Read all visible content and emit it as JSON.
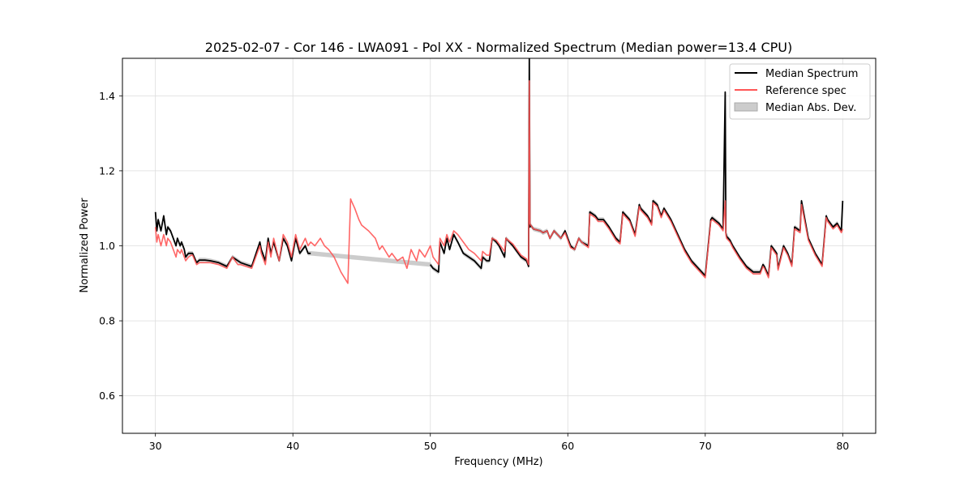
{
  "chart_data": {
    "type": "line",
    "title": "2025-02-07 - Cor 146 - LWA091 - Pol XX - Normalized Spectrum (Median power=13.4 CPU)",
    "xlabel": "Frequency (MHz)",
    "ylabel": "Normalized Power",
    "xlim": [
      27.6,
      82.4
    ],
    "ylim": [
      0.5,
      1.5
    ],
    "xticks": [
      30,
      40,
      50,
      60,
      70,
      80
    ],
    "yticks": [
      0.6,
      0.8,
      1.0,
      1.2,
      1.4
    ],
    "grid": true,
    "legend_position": "top-right",
    "legend": [
      {
        "label": "Median Spectrum",
        "kind": "line"
      },
      {
        "label": "Reference spec",
        "kind": "line"
      },
      {
        "label": "Median Abs. Dev.",
        "kind": "patch"
      }
    ],
    "colors": {
      "median": "#000000",
      "reference": "#ff5555",
      "mad": "#aaaaaa",
      "grid": "#dddddd"
    },
    "series": [
      {
        "name": "Median Spectrum",
        "x": [
          30.0,
          30.1,
          30.2,
          30.4,
          30.6,
          30.8,
          30.9,
          31.1,
          31.3,
          31.5,
          31.6,
          31.8,
          31.9,
          32.1,
          32.2,
          32.4,
          32.6,
          32.7,
          33.0,
          33.2,
          33.6,
          34.0,
          34.6,
          35.2,
          35.6,
          36.0,
          36.2,
          36.6,
          37.0,
          37.6,
          37.7,
          38.0,
          38.2,
          38.4,
          38.6,
          39.0,
          39.3,
          39.6,
          39.9,
          40.2,
          40.5,
          40.9,
          41.1,
          41.3,
          50.0,
          50.2,
          50.6,
          50.7,
          51.0,
          51.2,
          51.4,
          51.7,
          52.0,
          52.4,
          52.8,
          53.2,
          53.7,
          53.8,
          54.1,
          54.3,
          54.5,
          54.8,
          55.0,
          55.4,
          55.5,
          56.0,
          56.6,
          57.0,
          57.15,
          57.2,
          57.25,
          57.3,
          57.5,
          58.0,
          58.2,
          58.5,
          58.7,
          59.0,
          59.5,
          59.8,
          60.2,
          60.5,
          60.8,
          61.0,
          61.5,
          61.6,
          62.0,
          62.2,
          62.6,
          63.0,
          63.5,
          63.8,
          64.0,
          64.5,
          64.9,
          65.2,
          65.3,
          65.8,
          66.1,
          66.2,
          66.5,
          66.8,
          67.0,
          67.5,
          68.0,
          68.5,
          69.0,
          69.5,
          70.0,
          70.4,
          70.5,
          71.0,
          71.3,
          71.45,
          71.5,
          71.55,
          71.8,
          72.0,
          72.5,
          73.0,
          73.5,
          74.0,
          74.2,
          74.3,
          74.6,
          74.8,
          75.2,
          75.3,
          75.7,
          76.0,
          76.3,
          76.5,
          76.9,
          77.0,
          77.5,
          78.0,
          78.5,
          78.8,
          78.9,
          79.3,
          79.6,
          79.9,
          80.0
        ],
        "y": [
          1.09,
          1.04,
          1.07,
          1.04,
          1.08,
          1.03,
          1.05,
          1.04,
          1.02,
          1.0,
          1.02,
          1.0,
          1.01,
          0.99,
          0.97,
          0.98,
          0.98,
          0.98,
          0.955,
          0.962,
          0.962,
          0.96,
          0.955,
          0.945,
          0.97,
          0.96,
          0.955,
          0.95,
          0.945,
          1.01,
          0.99,
          0.96,
          1.02,
          0.98,
          1.01,
          0.96,
          1.02,
          1.0,
          0.96,
          1.02,
          0.98,
          1.0,
          0.98,
          0.98,
          0.95,
          0.94,
          0.93,
          1.01,
          0.98,
          1.02,
          0.99,
          1.03,
          1.01,
          0.98,
          0.97,
          0.96,
          0.94,
          0.97,
          0.96,
          0.96,
          1.02,
          1.01,
          1.0,
          0.97,
          1.02,
          1.0,
          0.97,
          0.96,
          0.945,
          1.5,
          1.05,
          1.055,
          1.045,
          1.04,
          1.035,
          1.04,
          1.02,
          1.04,
          1.02,
          1.04,
          1.0,
          0.99,
          1.02,
          1.01,
          1.0,
          1.09,
          1.08,
          1.07,
          1.07,
          1.05,
          1.02,
          1.01,
          1.09,
          1.07,
          1.03,
          1.11,
          1.1,
          1.08,
          1.06,
          1.12,
          1.11,
          1.08,
          1.1,
          1.07,
          1.03,
          0.99,
          0.96,
          0.94,
          0.92,
          1.07,
          1.075,
          1.06,
          1.045,
          1.41,
          1.035,
          1.025,
          1.015,
          1.0,
          0.97,
          0.945,
          0.93,
          0.93,
          0.95,
          0.945,
          0.92,
          1.0,
          0.98,
          0.94,
          1.0,
          0.98,
          0.95,
          1.05,
          1.04,
          1.12,
          1.02,
          0.98,
          0.95,
          1.08,
          1.07,
          1.05,
          1.06,
          1.04,
          1.12
        ]
      },
      {
        "name": "Reference spec",
        "x": [
          30.0,
          30.1,
          30.2,
          30.4,
          30.6,
          30.8,
          30.9,
          31.1,
          31.3,
          31.5,
          31.6,
          31.8,
          31.9,
          32.1,
          32.2,
          32.4,
          32.6,
          32.7,
          33.0,
          33.2,
          33.6,
          34.0,
          34.6,
          35.2,
          35.6,
          36.0,
          36.2,
          36.6,
          37.0,
          37.6,
          37.7,
          38.0,
          38.2,
          38.4,
          38.6,
          39.0,
          39.3,
          39.6,
          39.9,
          40.2,
          40.5,
          40.9,
          41.1,
          41.3,
          41.6,
          42.0,
          42.3,
          42.6,
          43.0,
          43.5,
          44.0,
          44.2,
          44.25,
          44.5,
          44.8,
          45.0,
          45.5,
          46.0,
          46.3,
          46.5,
          47.0,
          47.2,
          47.6,
          48.0,
          48.3,
          48.6,
          49.0,
          49.2,
          49.6,
          50.0,
          50.2,
          50.6,
          50.7,
          51.0,
          51.2,
          51.4,
          51.7,
          52.0,
          52.4,
          52.8,
          53.2,
          53.7,
          53.8,
          54.1,
          54.3,
          54.5,
          54.8,
          55.0,
          55.4,
          55.5,
          56.0,
          56.6,
          57.0,
          57.15,
          57.2,
          57.25,
          57.3,
          57.5,
          58.0,
          58.2,
          58.5,
          58.7,
          59.0,
          59.5,
          59.8,
          60.2,
          60.5,
          60.8,
          61.0,
          61.5,
          61.6,
          62.0,
          62.2,
          62.6,
          63.0,
          63.5,
          63.8,
          64.0,
          64.5,
          64.9,
          65.2,
          65.3,
          65.8,
          66.1,
          66.2,
          66.5,
          66.8,
          67.0,
          67.5,
          68.0,
          68.5,
          69.0,
          69.5,
          70.0,
          70.4,
          70.5,
          71.0,
          71.3,
          71.45,
          71.5,
          71.55,
          71.8,
          72.0,
          72.5,
          73.0,
          73.5,
          74.0,
          74.2,
          74.3,
          74.6,
          74.8,
          75.2,
          75.3,
          75.7,
          76.0,
          76.3,
          76.5,
          76.9,
          77.0,
          77.5,
          78.0,
          78.5,
          78.8,
          78.9,
          79.3,
          79.6,
          79.9,
          80.0
        ],
        "y": [
          1.05,
          1.01,
          1.03,
          1.0,
          1.03,
          1.0,
          1.02,
          1.01,
          0.99,
          0.97,
          0.99,
          0.98,
          0.99,
          0.97,
          0.96,
          0.97,
          0.975,
          0.975,
          0.95,
          0.955,
          0.955,
          0.955,
          0.95,
          0.94,
          0.97,
          0.95,
          0.95,
          0.945,
          0.94,
          1.0,
          0.98,
          0.95,
          1.01,
          0.97,
          1.02,
          0.96,
          1.03,
          1.01,
          0.97,
          1.03,
          0.99,
          1.02,
          1.0,
          1.01,
          1.0,
          1.02,
          1.0,
          0.99,
          0.97,
          0.93,
          0.9,
          1.125,
          1.12,
          1.1,
          1.07,
          1.055,
          1.04,
          1.02,
          0.99,
          1.0,
          0.97,
          0.98,
          0.96,
          0.97,
          0.94,
          0.99,
          0.96,
          0.99,
          0.97,
          1.0,
          0.97,
          0.95,
          1.02,
          1.0,
          1.03,
          1.01,
          1.04,
          1.03,
          1.01,
          0.99,
          0.98,
          0.96,
          0.985,
          0.975,
          0.975,
          1.02,
          1.015,
          1.005,
          0.985,
          1.02,
          1.005,
          0.975,
          0.965,
          0.95,
          1.44,
          1.06,
          1.055,
          1.045,
          1.04,
          1.035,
          1.04,
          1.02,
          1.04,
          1.02,
          1.035,
          0.995,
          0.99,
          1.02,
          1.01,
          0.995,
          1.085,
          1.075,
          1.065,
          1.065,
          1.045,
          1.015,
          1.005,
          1.085,
          1.065,
          1.025,
          1.105,
          1.095,
          1.075,
          1.055,
          1.115,
          1.105,
          1.075,
          1.095,
          1.065,
          1.025,
          0.985,
          0.955,
          0.935,
          0.915,
          1.065,
          1.07,
          1.055,
          1.04,
          1.12,
          1.03,
          1.02,
          1.01,
          0.995,
          0.965,
          0.94,
          0.925,
          0.925,
          0.945,
          0.94,
          0.915,
          0.995,
          0.975,
          0.935,
          0.995,
          0.975,
          0.945,
          1.045,
          1.035,
          1.11,
          1.015,
          0.975,
          0.945,
          1.075,
          1.065,
          1.045,
          1.055,
          1.035,
          1.045
        ]
      }
    ],
    "mad_band": {
      "name": "Median Abs. Dev.",
      "half_width": 0.006
    }
  }
}
